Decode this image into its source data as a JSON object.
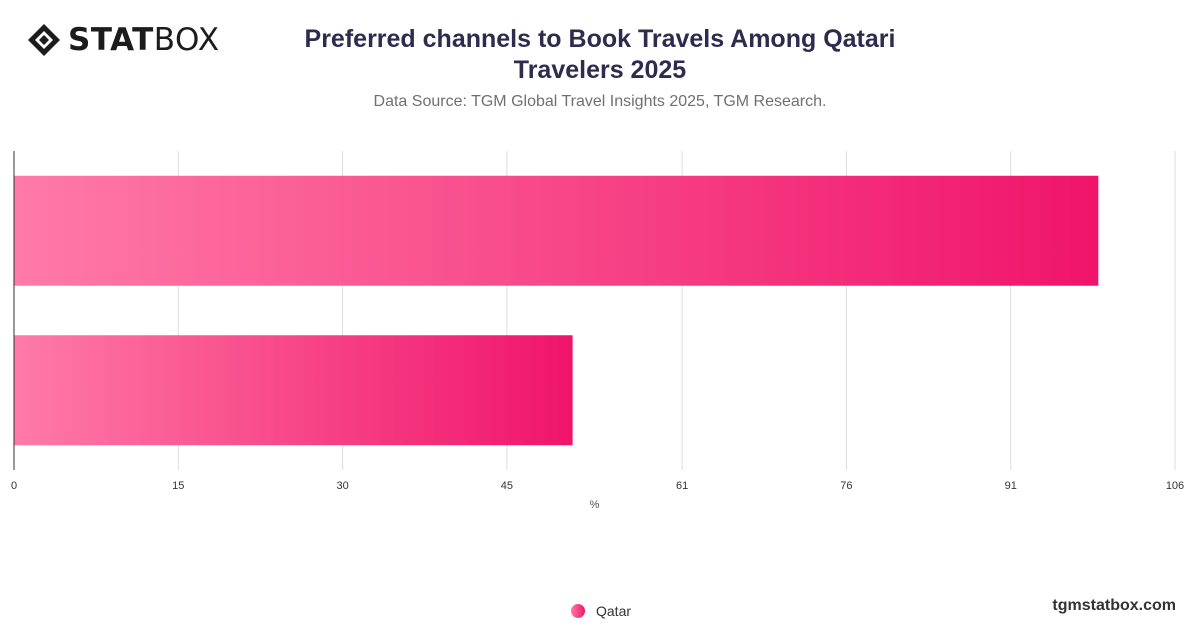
{
  "brand": {
    "logo_bold": "STAT",
    "logo_light": "BOX",
    "site": "tgmstatbox.com"
  },
  "header": {
    "title_line1": "Preferred channels to Book Travels Among Qatari",
    "title_line2": "Travelers 2025",
    "subtitle": "Data Source: TGM Global Travel Insights 2025, TGM Research."
  },
  "colors": {
    "bar_start": "#ff7aa8",
    "bar_end": "#f0146a",
    "grid": "#dddddd",
    "axis": "#333333"
  },
  "chart_data": {
    "type": "bar",
    "orientation": "horizontal",
    "categories": [
      "",
      ""
    ],
    "series": [
      {
        "name": "Qatar",
        "values": [
          99,
          51
        ]
      }
    ],
    "xlabel": "%",
    "ylabel": "",
    "xlim": [
      0,
      106
    ],
    "xticks": [
      0,
      15,
      30,
      45,
      61,
      76,
      91,
      106
    ],
    "grid": true,
    "legend_position": "bottom"
  }
}
